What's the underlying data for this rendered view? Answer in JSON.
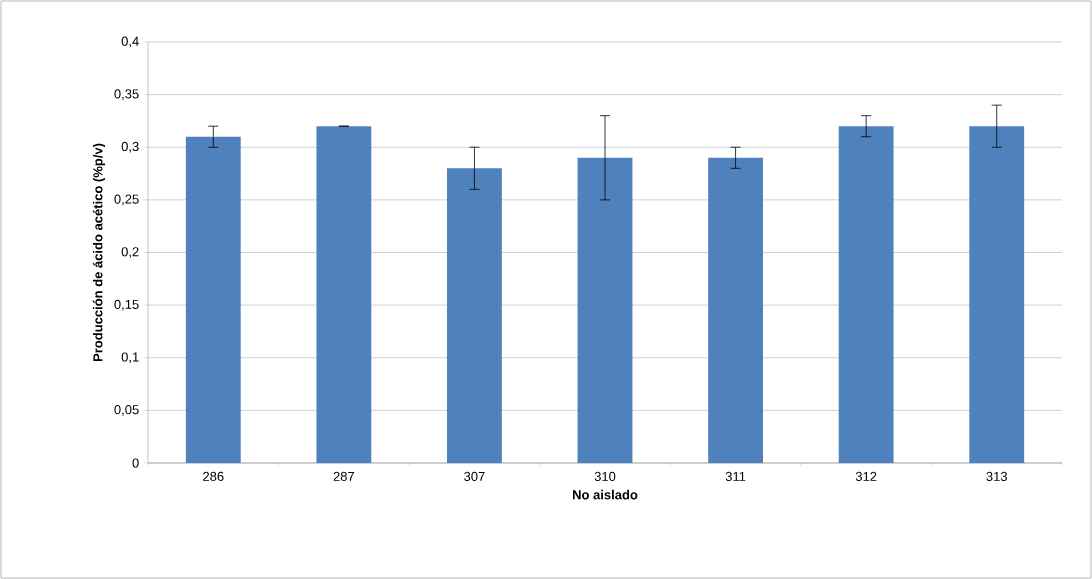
{
  "chart_data": {
    "type": "bar",
    "categories": [
      "286",
      "287",
      "307",
      "310",
      "311",
      "312",
      "313"
    ],
    "values": [
      0.31,
      0.32,
      0.28,
      0.29,
      0.29,
      0.32,
      0.32
    ],
    "errors": [
      0.01,
      0,
      0.02,
      0.04,
      0.01,
      0.01,
      0.02
    ],
    "color": "#4f81bd",
    "xlabel": "No aislado",
    "ylabel": "Producción de ácido acético (%p/v)",
    "ylim": [
      0,
      0.4
    ],
    "yticks": [
      0,
      {
        "value": 0.05,
        "label": "0,05"
      },
      {
        "value": 0.1,
        "label": "0,1"
      },
      {
        "value": 0.15,
        "label": "0,15"
      },
      {
        "value": 0.2,
        "label": "0,2"
      },
      {
        "value": 0.25,
        "label": "0,25"
      },
      {
        "value": 0.3,
        "label": "0,3"
      },
      {
        "value": 0.35,
        "label": "0,35"
      },
      {
        "value": 0.4,
        "label": "0,4"
      }
    ],
    "grid": "y"
  }
}
